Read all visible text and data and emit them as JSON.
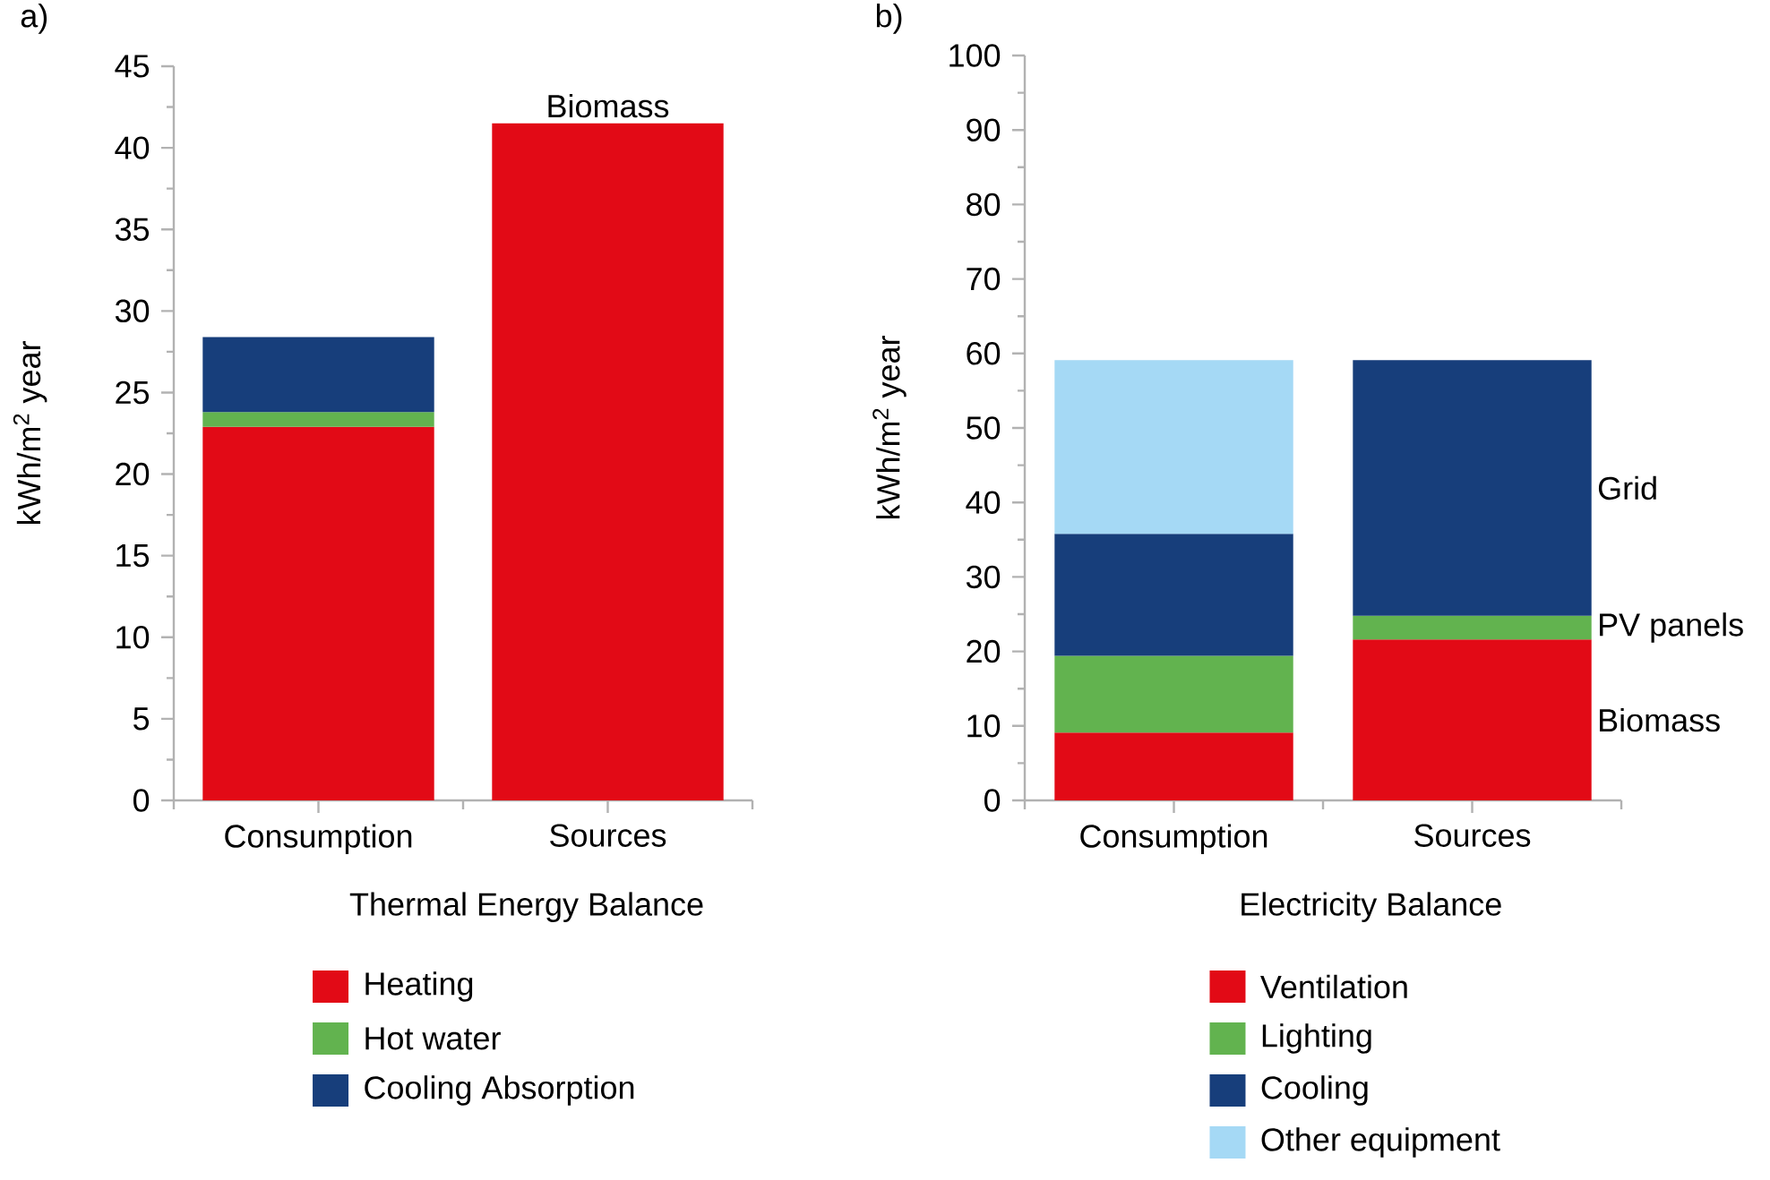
{
  "chart_data": [
    {
      "type": "bar",
      "title": "a)",
      "xlabel": "Thermal Energy Balance",
      "ylabel": "kWh/m$^{2}$ year",
      "categories": [
        "Consumption",
        "Sources"
      ],
      "stacked": true,
      "ylim": [
        0,
        45
      ],
      "yticks": [
        0,
        5,
        10,
        15,
        20,
        25,
        30,
        35,
        40,
        45
      ],
      "legend": "bottom",
      "series": [
        {
          "name": "Heating",
          "color": "#e20a16",
          "values": [
            22.9,
            null
          ]
        },
        {
          "name": "Hot water",
          "color": "#62b34f",
          "values": [
            0.9,
            null
          ]
        },
        {
          "name": "Cooling Absorption",
          "color": "#173e7b",
          "values": [
            4.6,
            null
          ]
        },
        {
          "name": "Biomass",
          "color": "#e20a16",
          "values": [
            null,
            41.5
          ]
        }
      ]
    },
    {
      "type": "bar",
      "title": "b)",
      "xlabel": "Electricity Balance",
      "ylabel": "kWh/m$^{2}$ year",
      "categories": [
        "Consumption",
        "Sources"
      ],
      "stacked": true,
      "ylim": [
        0,
        100
      ],
      "yticks": [
        0,
        10,
        20,
        30,
        40,
        50,
        60,
        70,
        80,
        90,
        100
      ],
      "legend": "bottom",
      "series": [
        {
          "name": "Ventilation",
          "color": "#e20a16",
          "values": [
            9.1,
            null
          ]
        },
        {
          "name": "Lighting",
          "color": "#62b34f",
          "values": [
            10.3,
            null
          ]
        },
        {
          "name": "Cooling",
          "color": "#173e7b",
          "values": [
            16.4,
            null
          ]
        },
        {
          "name": "Other equipment",
          "color": "#a5d9f5",
          "values": [
            23.3,
            null
          ]
        },
        {
          "name": "Biomass",
          "color": "#e20a16",
          "values": [
            null,
            21.6
          ]
        },
        {
          "name": "PV panels",
          "color": "#62b34f",
          "values": [
            null,
            3.2
          ]
        },
        {
          "name": "Grid",
          "color": "#173e7b",
          "values": [
            null,
            34.3
          ]
        }
      ]
    }
  ]
}
